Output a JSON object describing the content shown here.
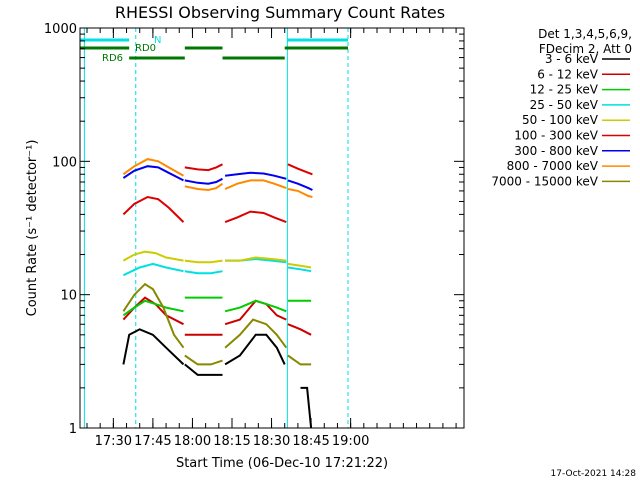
{
  "chart_data": {
    "type": "line",
    "title": "RHESSI Observing Summary Count Rates",
    "xlabel": "Start Time (06-Dec-10 17:21:22)",
    "ylabel": "Count Rate (s⁻¹ detector⁻¹)",
    "y_scale": "log",
    "ylim": [
      1,
      1000
    ],
    "xlim_minutes": [
      17.35,
      163.0
    ],
    "x_ticks": [
      {
        "label": "17:30",
        "minutes": 30
      },
      {
        "label": "17:45",
        "minutes": 45
      },
      {
        "label": "18:00",
        "minutes": 60
      },
      {
        "label": "18:15",
        "minutes": 75
      },
      {
        "label": "18:30",
        "minutes": 90
      },
      {
        "label": "18:45",
        "minutes": 105
      },
      {
        "label": "19:00",
        "minutes": 120
      }
    ],
    "y_ticks": [
      {
        "label": "1",
        "value": 1
      },
      {
        "label": "10",
        "value": 10
      },
      {
        "label": "100",
        "value": 100
      },
      {
        "label": "1000",
        "value": 1000
      }
    ],
    "legend_header": [
      "Det 1,3,4,5,6,9,",
      "FDecim 2, Att 0"
    ],
    "legend_placement": "right",
    "series": [
      {
        "name": "3 - 6 keV",
        "color": "#000000",
        "segments": [
          [
            [
              33.8,
              3
            ],
            [
              36,
              5
            ],
            [
              40,
              5.5
            ],
            [
              45,
              5
            ],
            [
              50,
              4
            ],
            [
              56.6,
              3
            ]
          ],
          [
            [
              57.1,
              3
            ],
            [
              62,
              2.5
            ],
            [
              67,
              2.5
            ],
            [
              71.4,
              2.5
            ]
          ],
          [
            [
              72.4,
              3
            ],
            [
              78,
              3.5
            ],
            [
              84,
              5
            ],
            [
              88,
              5
            ],
            [
              92,
              4
            ],
            [
              95,
              3
            ]
          ],
          [
            [
              101,
              2
            ],
            [
              103.5,
              2
            ],
            [
              105,
              1
            ]
          ]
        ]
      },
      {
        "name": "6 - 12 keV",
        "color": "#cc0000",
        "segments": [
          [
            [
              33.8,
              6.5
            ],
            [
              38,
              8
            ],
            [
              42,
              9.5
            ],
            [
              46,
              8.5
            ],
            [
              50,
              7
            ],
            [
              56.6,
              6
            ]
          ],
          [
            [
              57.1,
              5
            ],
            [
              61,
              5
            ],
            [
              67,
              5
            ],
            [
              71.4,
              5
            ]
          ],
          [
            [
              72.4,
              6
            ],
            [
              78,
              6.5
            ],
            [
              84,
              9
            ],
            [
              88,
              8.5
            ],
            [
              92,
              7
            ],
            [
              95.6,
              6.5
            ]
          ],
          [
            [
              96.2,
              6
            ],
            [
              101,
              5.5
            ],
            [
              105,
              5
            ]
          ]
        ]
      },
      {
        "name": "12 - 25 keV",
        "color": "#00cc00",
        "segments": [
          [
            [
              33.8,
              7
            ],
            [
              38,
              8
            ],
            [
              42,
              9
            ],
            [
              46,
              8.5
            ],
            [
              50,
              8
            ],
            [
              56.6,
              7.5
            ]
          ],
          [
            [
              57.1,
              9.5
            ],
            [
              62,
              9.5
            ],
            [
              67,
              9.5
            ],
            [
              71.4,
              9.5
            ]
          ],
          [
            [
              72.4,
              7.5
            ],
            [
              78,
              8
            ],
            [
              84,
              9
            ],
            [
              88,
              8.5
            ],
            [
              92,
              8
            ],
            [
              95.6,
              7.5
            ]
          ],
          [
            [
              96.2,
              9
            ],
            [
              101,
              9
            ],
            [
              105,
              9
            ]
          ]
        ]
      },
      {
        "name": "25 - 50 keV",
        "color": "#00e0e0",
        "segments": [
          [
            [
              33.8,
              14
            ],
            [
              40,
              16
            ],
            [
              45,
              17
            ],
            [
              50,
              16
            ],
            [
              56.6,
              15
            ]
          ],
          [
            [
              57.1,
              15
            ],
            [
              62,
              14.5
            ],
            [
              67,
              14.5
            ],
            [
              71.4,
              15
            ]
          ],
          [
            [
              72.4,
              18
            ],
            [
              78,
              18
            ],
            [
              84,
              18.5
            ],
            [
              90,
              18
            ],
            [
              95.6,
              17.5
            ]
          ],
          [
            [
              96.2,
              16
            ],
            [
              101,
              15.5
            ],
            [
              105,
              15
            ]
          ]
        ]
      },
      {
        "name": "50 - 100 keV",
        "color": "#cccc00",
        "segments": [
          [
            [
              33.8,
              18
            ],
            [
              38,
              20
            ],
            [
              42,
              21
            ],
            [
              46,
              20.5
            ],
            [
              50,
              19
            ],
            [
              56.6,
              18
            ]
          ],
          [
            [
              57.1,
              18
            ],
            [
              62,
              17.5
            ],
            [
              67,
              17.5
            ],
            [
              71.4,
              18
            ]
          ],
          [
            [
              72.4,
              18
            ],
            [
              78,
              18
            ],
            [
              84,
              19
            ],
            [
              90,
              18.5
            ],
            [
              95.6,
              18
            ]
          ],
          [
            [
              96.2,
              17
            ],
            [
              101,
              16.5
            ],
            [
              105,
              16
            ]
          ]
        ]
      },
      {
        "name": "100 - 300 keV",
        "color": "#dd0000",
        "segments": [
          [
            [
              33.8,
              40
            ],
            [
              38,
              48
            ],
            [
              43,
              54
            ],
            [
              47,
              52
            ],
            [
              51,
              45
            ],
            [
              56.6,
              35
            ]
          ],
          [
            [
              57.1,
              90
            ],
            [
              62,
              87
            ],
            [
              66,
              86
            ],
            [
              69,
              90
            ],
            [
              71.4,
              95
            ]
          ],
          [
            [
              72.4,
              35
            ],
            [
              77,
              38
            ],
            [
              82,
              42
            ],
            [
              87,
              41
            ],
            [
              91,
              38
            ],
            [
              95.6,
              35
            ]
          ],
          [
            [
              96.2,
              95
            ],
            [
              100,
              88
            ],
            [
              104,
              82
            ],
            [
              105.5,
              80
            ]
          ]
        ]
      },
      {
        "name": "300 - 800 keV",
        "color": "#0000ee",
        "segments": [
          [
            [
              33.8,
              75
            ],
            [
              38,
              85
            ],
            [
              43,
              92
            ],
            [
              47,
              90
            ],
            [
              51,
              82
            ],
            [
              56.6,
              72
            ]
          ],
          [
            [
              57.1,
              72
            ],
            [
              62,
              69
            ],
            [
              66,
              68
            ],
            [
              69,
              70
            ],
            [
              71.4,
              74
            ]
          ],
          [
            [
              72.4,
              78
            ],
            [
              77,
              80
            ],
            [
              82,
              82
            ],
            [
              87,
              81
            ],
            [
              91,
              78
            ],
            [
              95.6,
              74
            ]
          ],
          [
            [
              96.2,
              72
            ],
            [
              100,
              68
            ],
            [
              104,
              63
            ],
            [
              105.5,
              61
            ]
          ]
        ]
      },
      {
        "name": "800 - 7000 keV",
        "color": "#ff8800",
        "segments": [
          [
            [
              33.8,
              80
            ],
            [
              38,
              92
            ],
            [
              43,
              104
            ],
            [
              47,
              100
            ],
            [
              51,
              90
            ],
            [
              56.6,
              78
            ]
          ],
          [
            [
              57.1,
              65
            ],
            [
              62,
              62
            ],
            [
              66,
              61
            ],
            [
              69,
              63
            ],
            [
              71.4,
              68
            ]
          ],
          [
            [
              72.4,
              62
            ],
            [
              77,
              68
            ],
            [
              82,
              72
            ],
            [
              87,
              72
            ],
            [
              91,
              68
            ],
            [
              95.6,
              63
            ]
          ],
          [
            [
              96.2,
              62
            ],
            [
              100,
              60
            ],
            [
              104,
              55
            ],
            [
              105.5,
              54
            ]
          ]
        ]
      },
      {
        "name": "7000 - 15000 keV",
        "color": "#888800",
        "segments": [
          [
            [
              33.8,
              7.5
            ],
            [
              38,
              10
            ],
            [
              42,
              12
            ],
            [
              45,
              11
            ],
            [
              49,
              8
            ],
            [
              53,
              5
            ],
            [
              56.6,
              4
            ]
          ],
          [
            [
              57.1,
              3.5
            ],
            [
              62,
              3
            ],
            [
              67,
              3
            ],
            [
              71.4,
              3.2
            ]
          ],
          [
            [
              72.4,
              4
            ],
            [
              78,
              5
            ],
            [
              83,
              6.5
            ],
            [
              88,
              6
            ],
            [
              92,
              5
            ],
            [
              95.6,
              4
            ]
          ],
          [
            [
              96.2,
              3.5
            ],
            [
              101,
              3
            ],
            [
              105,
              3
            ]
          ]
        ]
      }
    ],
    "vertical_lines": [
      {
        "minutes": 19.0,
        "style": "solid",
        "color": "#00e0e0"
      },
      {
        "minutes": 38.5,
        "style": "dashed",
        "color": "#00e0e0"
      },
      {
        "minutes": 96.0,
        "style": "solid",
        "color": "#00e0e0"
      },
      {
        "minutes": 119.0,
        "style": "dashed",
        "color": "#00e0e0"
      }
    ],
    "status_bars": [
      {
        "label": "N",
        "label_color": "#00e0e0",
        "color": "#00e0e0",
        "level": 0,
        "intervals": [
          [
            17.35,
            36.0
          ],
          [
            96.0,
            119.0
          ]
        ]
      },
      {
        "label": "RD0",
        "label_color": "#007700",
        "color": "#007700",
        "level": 1,
        "intervals": [
          [
            17.35,
            36.0
          ],
          [
            57.1,
            71.4
          ],
          [
            95.0,
            119.0
          ]
        ]
      },
      {
        "label": "RD6",
        "label_color": "#007700",
        "color": "#007700",
        "level": 2,
        "intervals": [
          [
            36.0,
            57.1
          ],
          [
            71.4,
            95.0
          ]
        ]
      }
    ]
  },
  "footer": {
    "timestamp": "17-Oct-2021 14:28"
  }
}
